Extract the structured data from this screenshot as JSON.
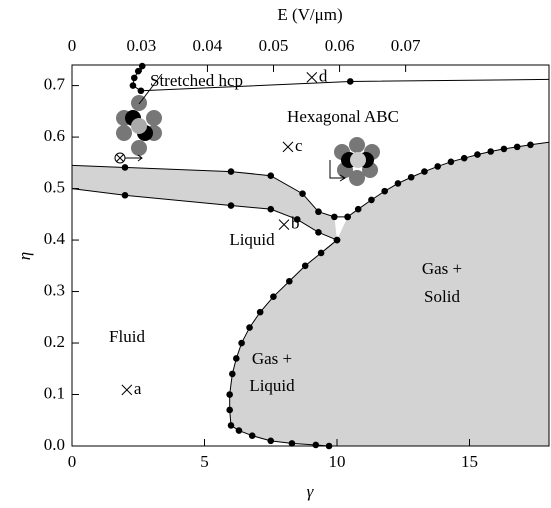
{
  "chart_data": {
    "type": "line",
    "x_label": "γ",
    "y_label": "η",
    "x2_label": "E (V/μm)",
    "xlim": [
      0,
      18
    ],
    "ylim": [
      0,
      0.74
    ],
    "xticks": [
      0,
      5,
      10,
      15
    ],
    "yticks": [
      {
        "value": 0,
        "label": "0.0"
      },
      0.1,
      0.2,
      0.3,
      0.4,
      0.5,
      0.6,
      0.7
    ],
    "x2lim": [
      0.0195,
      0.0917
    ],
    "x2ticks": [
      {
        "value": 0.0195,
        "label": "0"
      },
      0.03,
      0.04,
      0.05,
      0.06,
      0.07
    ],
    "color": "#000000",
    "region_color": "#d3d3d3",
    "lines": [
      {
        "x": [
          0,
          2,
          6,
          7.5,
          8.7,
          9.3,
          9.9,
          10.4
        ],
        "y": [
          0.545,
          0.541,
          0.533,
          0.525,
          0.49,
          0.455,
          0.445,
          0.445
        ]
      },
      {
        "x": [
          10.4,
          10.8,
          11.3,
          11.8,
          12.3,
          12.8,
          13.3,
          13.8,
          14.3,
          14.8,
          15.3,
          15.8,
          16.3,
          16.8,
          17.3,
          18
        ],
        "y": [
          0.445,
          0.46,
          0.478,
          0.495,
          0.51,
          0.522,
          0.533,
          0.543,
          0.552,
          0.559,
          0.566,
          0.572,
          0.577,
          0.581,
          0.585,
          0.59
        ]
      },
      {
        "x": [
          0,
          2,
          6,
          7.5,
          8.5,
          9.3,
          10
        ],
        "y": [
          0.5,
          0.487,
          0.467,
          0.46,
          0.44,
          0.415,
          0.4
        ]
      },
      {
        "x": [
          10,
          9.4,
          8.8,
          8.2,
          7.6,
          7.1,
          6.7,
          6.4,
          6.2,
          6.05,
          5.95,
          5.95,
          6.0,
          6.3,
          6.8,
          7.5,
          8.3,
          9.2,
          9.7
        ],
        "y": [
          0.4,
          0.375,
          0.35,
          0.32,
          0.29,
          0.26,
          0.23,
          0.2,
          0.17,
          0.14,
          0.1,
          0.07,
          0.04,
          0.03,
          0.02,
          0.01,
          0.005,
          0.002,
          0
        ]
      },
      {
        "x": [
          2.65,
          2.5,
          2.35,
          2.3,
          2.6,
          10.5,
          18
        ],
        "y": [
          0.738,
          0.728,
          0.715,
          0.7,
          0.69,
          0.708,
          0.712
        ]
      }
    ],
    "points": [
      {
        "label": "a",
        "x": 2.07,
        "y": 0.109
      },
      {
        "label": "b",
        "x": 8.0,
        "y": 0.43
      },
      {
        "label": "c",
        "x": 8.15,
        "y": 0.581
      },
      {
        "label": "d",
        "x": 9.05,
        "y": 0.716
      }
    ],
    "annotations": [
      "Stretched hcp",
      "Hexagonal ABC",
      "Liquid",
      "Fluid",
      "Gas +",
      "Solid",
      "Gas +",
      "Liquid"
    ]
  }
}
